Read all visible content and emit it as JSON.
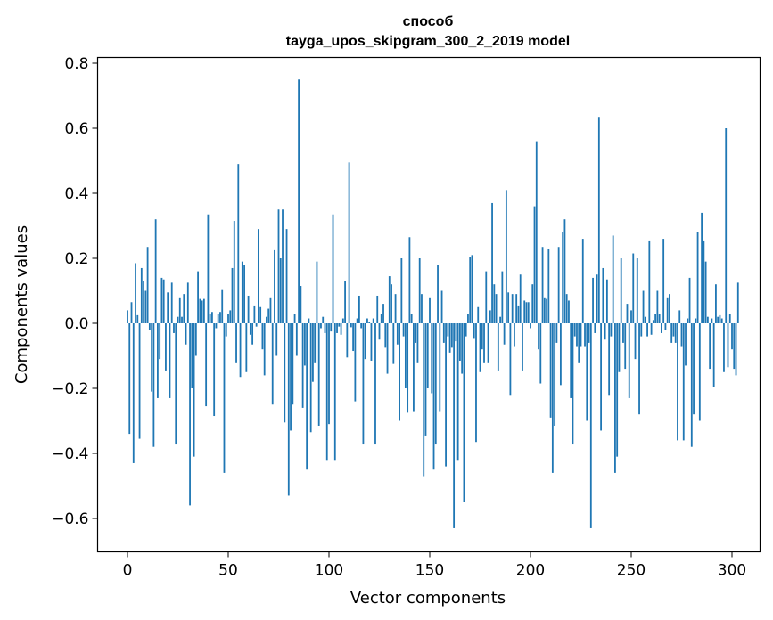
{
  "chart_data": {
    "type": "bar",
    "title": "способ",
    "subtitle": "tayga_upos_skipgram_300_2_2019 model",
    "xlabel": "Vector components",
    "ylabel": "Components values",
    "xlim": [
      -15,
      315
    ],
    "ylim": [
      -0.7,
      0.82
    ],
    "xticks": [
      0,
      50,
      100,
      150,
      200,
      250,
      300
    ],
    "yticks": [
      -0.6,
      -0.4,
      -0.2,
      0.0,
      0.2,
      0.4,
      0.6,
      0.8
    ],
    "ytick_labels": [
      "−0.6",
      "−0.4",
      "−0.2",
      "0.0",
      "0.2",
      "0.4",
      "0.6",
      "0.8"
    ],
    "bar_color": "#1f77b4",
    "grid": false,
    "values": [
      0.04,
      -0.34,
      0.065,
      -0.43,
      0.185,
      0.025,
      -0.355,
      0.17,
      0.13,
      0.1,
      0.235,
      -0.02,
      -0.21,
      -0.38,
      0.32,
      -0.23,
      -0.11,
      0.14,
      0.135,
      -0.145,
      0.095,
      -0.23,
      0.125,
      -0.03,
      -0.37,
      0.02,
      0.08,
      0.02,
      0.09,
      -0.065,
      0.125,
      -0.56,
      -0.2,
      -0.41,
      -0.1,
      0.16,
      0.075,
      0.07,
      0.075,
      -0.255,
      0.335,
      0.03,
      0.035,
      -0.285,
      -0.015,
      0.03,
      0.035,
      0.105,
      -0.46,
      -0.04,
      0.03,
      0.04,
      0.17,
      0.315,
      -0.12,
      0.49,
      -0.165,
      0.19,
      0.18,
      -0.15,
      0.085,
      -0.035,
      -0.065,
      0.055,
      -0.01,
      0.29,
      0.05,
      -0.08,
      -0.16,
      0.02,
      0.045,
      0.08,
      -0.25,
      0.225,
      -0.1,
      0.35,
      0.2,
      0.35,
      -0.305,
      0.29,
      -0.53,
      -0.33,
      -0.25,
      0.03,
      -0.1,
      0.75,
      0.115,
      -0.26,
      -0.13,
      -0.45,
      0.015,
      -0.335,
      -0.18,
      -0.12,
      0.19,
      -0.315,
      -0.015,
      0.02,
      -0.03,
      -0.42,
      -0.31,
      -0.025,
      0.335,
      -0.42,
      -0.03,
      -0.01,
      -0.035,
      0.015,
      0.13,
      -0.105,
      0.495,
      -0.012,
      -0.085,
      -0.24,
      0.015,
      0.085,
      -0.015,
      -0.37,
      -0.11,
      0.015,
      0.005,
      -0.115,
      0.015,
      -0.37,
      0.085,
      -0.05,
      0.03,
      0.06,
      -0.075,
      -0.155,
      0.145,
      0.12,
      -0.125,
      0.09,
      -0.065,
      -0.3,
      0.2,
      -0.04,
      -0.2,
      -0.275,
      0.265,
      0.03,
      -0.27,
      -0.06,
      -0.12,
      0.2,
      0.09,
      -0.47,
      -0.345,
      -0.2,
      0.08,
      -0.215,
      -0.45,
      -0.37,
      0.18,
      -0.27,
      0.1,
      -0.06,
      -0.44,
      -0.04,
      -0.09,
      -0.075,
      -0.63,
      -0.055,
      -0.42,
      -0.115,
      -0.155,
      -0.55,
      -0.04,
      0.03,
      0.205,
      0.21,
      -0.045,
      -0.365,
      0.05,
      -0.15,
      -0.08,
      -0.12,
      0.16,
      -0.12,
      0.04,
      0.37,
      0.12,
      0.09,
      -0.145,
      0.02,
      0.16,
      -0.065,
      0.41,
      0.095,
      -0.22,
      0.09,
      -0.07,
      0.09,
      0.055,
      0.15,
      -0.145,
      0.07,
      0.065,
      0.065,
      -0.015,
      0.12,
      0.36,
      0.56,
      -0.08,
      -0.185,
      0.235,
      0.08,
      0.075,
      0.23,
      -0.29,
      -0.46,
      -0.315,
      -0.06,
      0.235,
      -0.19,
      0.28,
      0.32,
      0.09,
      0.07,
      -0.23,
      -0.37,
      -0.04,
      -0.07,
      -0.12,
      -0.07,
      0.26,
      -0.07,
      -0.3,
      -0.06,
      -0.63,
      0.14,
      -0.03,
      0.15,
      0.635,
      -0.33,
      0.17,
      -0.05,
      0.135,
      -0.22,
      -0.04,
      0.27,
      -0.46,
      -0.41,
      -0.15,
      0.2,
      -0.06,
      -0.14,
      0.06,
      -0.23,
      0.04,
      0.215,
      -0.11,
      0.2,
      -0.28,
      -0.04,
      0.1,
      0.02,
      -0.04,
      0.255,
      -0.035,
      0.01,
      0.03,
      0.1,
      0.03,
      -0.03,
      0.26,
      -0.02,
      0.08,
      0.09,
      -0.06,
      -0.04,
      -0.06,
      -0.36,
      0.04,
      -0.07,
      -0.36,
      -0.13,
      0.015,
      0.14,
      -0.38,
      -0.28,
      0.015,
      0.28,
      -0.3,
      0.34,
      0.255,
      0.19,
      0.02,
      -0.14,
      0.015,
      -0.195,
      0.12,
      0.02,
      0.025,
      0.015,
      -0.15,
      0.6,
      -0.135,
      0.03,
      -0.08,
      -0.14,
      -0.16,
      0.125
    ]
  }
}
